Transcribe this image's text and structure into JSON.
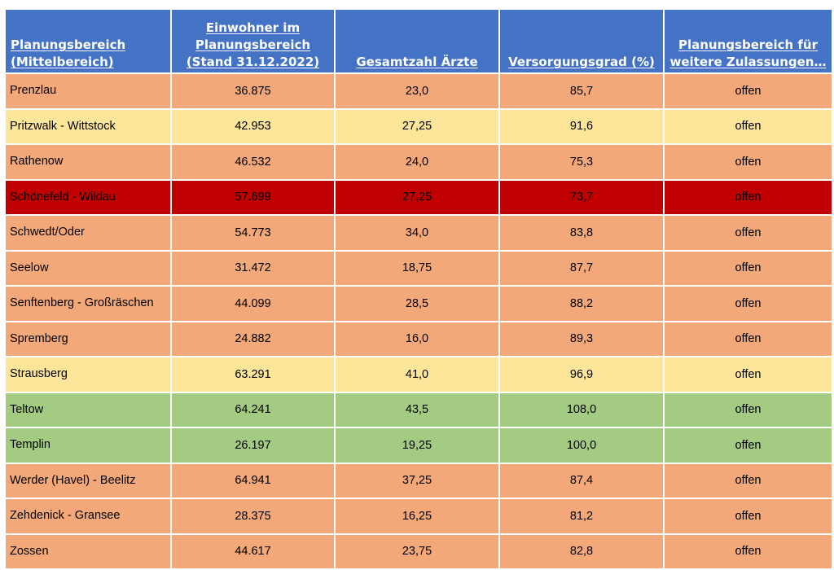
{
  "colors": {
    "header": "#4472c4",
    "orange": "#f2a878",
    "yellow": "#fde59a",
    "red": "#c00000",
    "green": "#a3cc82"
  },
  "table": {
    "headers": [
      "Planungsbereich (Mittelbereich)",
      "Einwohner im Planungsbereich (Stand 31.12.2022)",
      "Gesamtzahl Ärzte",
      "Versorgungsgrad (%)",
      "Planungsbereich für weitere Zulassungen…"
    ],
    "rows": [
      {
        "name": "Prenzlau",
        "einwohner": "36.875",
        "aerzte": "23,0",
        "grad": "85,7",
        "status": "offen",
        "color": "orange"
      },
      {
        "name": "Pritzwalk - Wittstock",
        "einwohner": "42.953",
        "aerzte": "27,25",
        "grad": "91,6",
        "status": "offen",
        "color": "yellow"
      },
      {
        "name": "Rathenow",
        "einwohner": "46.532",
        "aerzte": "24,0",
        "grad": "75,3",
        "status": "offen",
        "color": "orange"
      },
      {
        "name": "Schönefeld - Wildau",
        "einwohner": "57.699",
        "aerzte": "27,25",
        "grad": "73,7",
        "status": "offen",
        "color": "red"
      },
      {
        "name": "Schwedt/Oder",
        "einwohner": "54.773",
        "aerzte": "34,0",
        "grad": "83,8",
        "status": "offen",
        "color": "orange"
      },
      {
        "name": "Seelow",
        "einwohner": "31.472",
        "aerzte": "18,75",
        "grad": "87,7",
        "status": "offen",
        "color": "orange"
      },
      {
        "name": "Senftenberg - Großräschen",
        "einwohner": "44.099",
        "aerzte": "28,5",
        "grad": "88,2",
        "status": "offen",
        "color": "orange"
      },
      {
        "name": "Spremberg",
        "einwohner": "24.882",
        "aerzte": "16,0",
        "grad": "89,3",
        "status": "offen",
        "color": "orange"
      },
      {
        "name": "Strausberg",
        "einwohner": "63.291",
        "aerzte": "41,0",
        "grad": "96,9",
        "status": "offen",
        "color": "yellow"
      },
      {
        "name": "Teltow",
        "einwohner": "64.241",
        "aerzte": "43,5",
        "grad": "108,0",
        "status": "offen",
        "color": "green"
      },
      {
        "name": "Templin",
        "einwohner": "26.197",
        "aerzte": "19,25",
        "grad": "100,0",
        "status": "offen",
        "color": "green"
      },
      {
        "name": "Werder (Havel) - Beelitz",
        "einwohner": "64.941",
        "aerzte": "37,25",
        "grad": "87,4",
        "status": "offen",
        "color": "orange"
      },
      {
        "name": "Zehdenick - Gransee",
        "einwohner": "28.375",
        "aerzte": "16,25",
        "grad": "81,2",
        "status": "offen",
        "color": "orange"
      },
      {
        "name": "Zossen",
        "einwohner": "44.617",
        "aerzte": "23,75",
        "grad": "82,8",
        "status": "offen",
        "color": "orange"
      }
    ]
  }
}
